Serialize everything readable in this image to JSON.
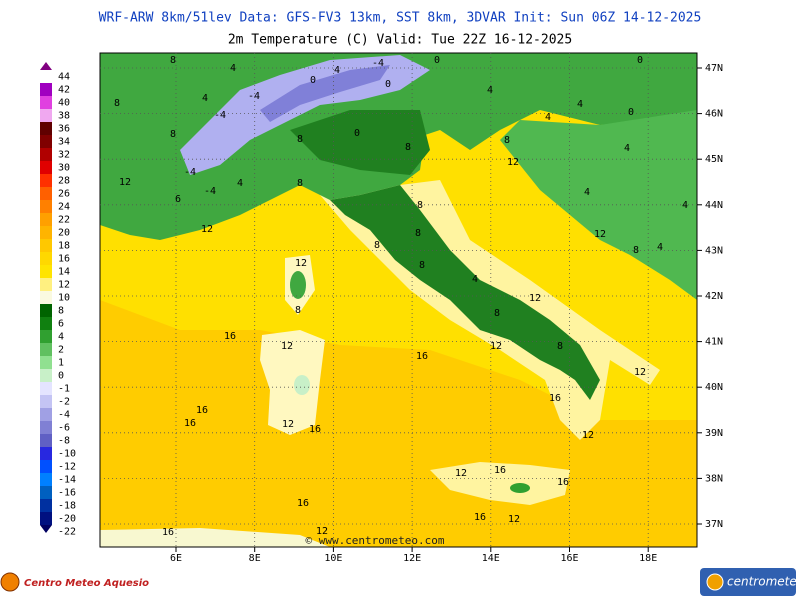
{
  "header": {
    "line1": "WRF-ARW 8km/51lev  Data: GFS-FV3 13km, SST 8km, 3DVAR  Init: Sun 06Z 14-12-2025",
    "line2": "2m Temperature (C)  Valid: Tue 22Z 16-12-2025"
  },
  "legend": [
    {
      "label": "44",
      "color": "#800080"
    },
    {
      "label": "42",
      "color": "#a000c0"
    },
    {
      "label": "40",
      "color": "#e040e0"
    },
    {
      "label": "38",
      "color": "#f0a8f0"
    },
    {
      "label": "36",
      "color": "#600000"
    },
    {
      "label": "34",
      "color": "#800000"
    },
    {
      "label": "32",
      "color": "#b00000"
    },
    {
      "label": "30",
      "color": "#e00000"
    },
    {
      "label": "28",
      "color": "#ff3000"
    },
    {
      "label": "26",
      "color": "#ff6000"
    },
    {
      "label": "24",
      "color": "#ff8000"
    },
    {
      "label": "22",
      "color": "#ffa000"
    },
    {
      "label": "20",
      "color": "#ffb400"
    },
    {
      "label": "18",
      "color": "#ffc800"
    },
    {
      "label": "16",
      "color": "#ffd800"
    },
    {
      "label": "14",
      "color": "#ffe400"
    },
    {
      "label": "12",
      "color": "#fff080"
    },
    {
      "label": "10",
      "color": "#fafae0"
    },
    {
      "label": "8",
      "color": "#006400"
    },
    {
      "label": "6",
      "color": "#108010"
    },
    {
      "label": "4",
      "color": "#30a030"
    },
    {
      "label": "2",
      "color": "#60c060"
    },
    {
      "label": "1",
      "color": "#90e090"
    },
    {
      "label": "0",
      "color": "#c8f0c8"
    },
    {
      "label": "-1",
      "color": "#e4e4ff"
    },
    {
      "label": "-2",
      "color": "#c4c4f4"
    },
    {
      "label": "-4",
      "color": "#a0a0e4"
    },
    {
      "label": "-6",
      "color": "#8080d4"
    },
    {
      "label": "-8",
      "color": "#6060c4"
    },
    {
      "label": "-10",
      "color": "#2828e0"
    },
    {
      "label": "-12",
      "color": "#0050ff"
    },
    {
      "label": "-14",
      "color": "#0080ff"
    },
    {
      "label": "-16",
      "color": "#0060c0"
    },
    {
      "label": "-18",
      "color": "#0030a0"
    },
    {
      "label": "-20",
      "color": "#001080"
    },
    {
      "label": "-22",
      "color": "#000060"
    }
  ],
  "lon_labels": [
    "6E",
    "8E",
    "10E",
    "12E",
    "14E",
    "16E",
    "18E"
  ],
  "lat_labels": [
    "47N",
    "46N",
    "45N",
    "44N",
    "43N",
    "42N",
    "41N",
    "40N",
    "39N",
    "38N",
    "37N"
  ],
  "contour_labels": [
    "8",
    "4",
    "-4",
    "0",
    "0",
    "0",
    "4",
    "0",
    "4",
    "8",
    "4",
    "-4",
    "8",
    "-4",
    "4",
    "0",
    "4",
    "8",
    "0",
    "8",
    "8",
    "12",
    "4",
    "-4",
    "4",
    "-4",
    "12",
    "8",
    "6",
    "4",
    "4",
    "12",
    "8",
    "12",
    "8",
    "8",
    "4",
    "8",
    "12",
    "8",
    "4",
    "8",
    "12",
    "16",
    "8",
    "12",
    "16",
    "12",
    "8",
    "12",
    "16",
    "16",
    "12",
    "16",
    "16",
    "12",
    "12",
    "16",
    "16",
    "16",
    "16",
    "12",
    "16",
    "12"
  ],
  "watermark": "© www.centrometeo.com",
  "footer_left": "Centro Meteo Aquesio",
  "footer_right": "centrometeo"
}
